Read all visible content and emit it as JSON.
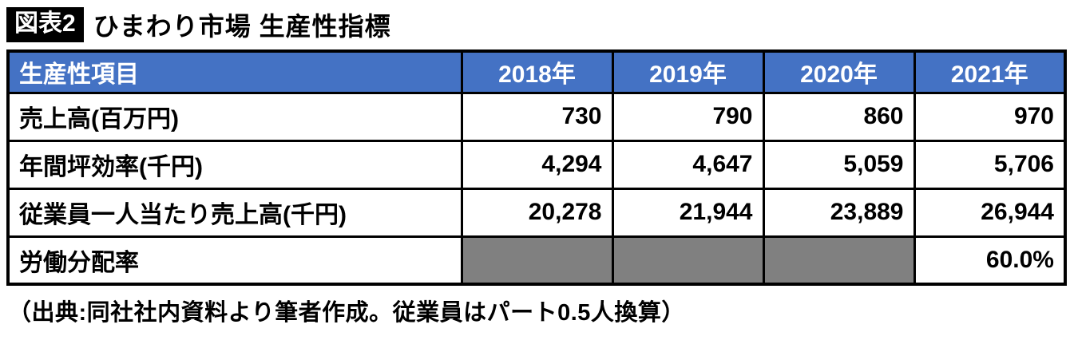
{
  "title": {
    "badge": "図表2",
    "text": "ひまわり市場 生産性指標"
  },
  "footer": {
    "source_note": "（出典:同社社内資料より筆者作成。従業員はパート0.5人換算）"
  },
  "colors": {
    "header_bg": "#4472C4",
    "header_text": "#FFFFFF",
    "empty_cell_bg": "#808080",
    "border": "#000000",
    "badge_bg": "#000000"
  },
  "chart_data": {
    "type": "table",
    "title": "ひまわり市場 生産性指標",
    "columns": [
      "生産性項目",
      "2018年",
      "2019年",
      "2020年",
      "2021年"
    ],
    "rows": [
      {
        "label": "売上高(百万円)",
        "values": [
          "730",
          "790",
          "860",
          "970"
        ]
      },
      {
        "label": "年間坪効率(千円)",
        "values": [
          "4,294",
          "4,647",
          "5,059",
          "5,706"
        ]
      },
      {
        "label": "従業員一人当たり売上高(千円)",
        "values": [
          "20,278",
          "21,944",
          "23,889",
          "26,944"
        ]
      },
      {
        "label": "労働分配率",
        "values": [
          "",
          "",
          "",
          "60.0%"
        ]
      }
    ],
    "notes": "労働分配率 row has gray filled (no data) cells for 2018-2020; only 2021 shows 60.0%"
  }
}
